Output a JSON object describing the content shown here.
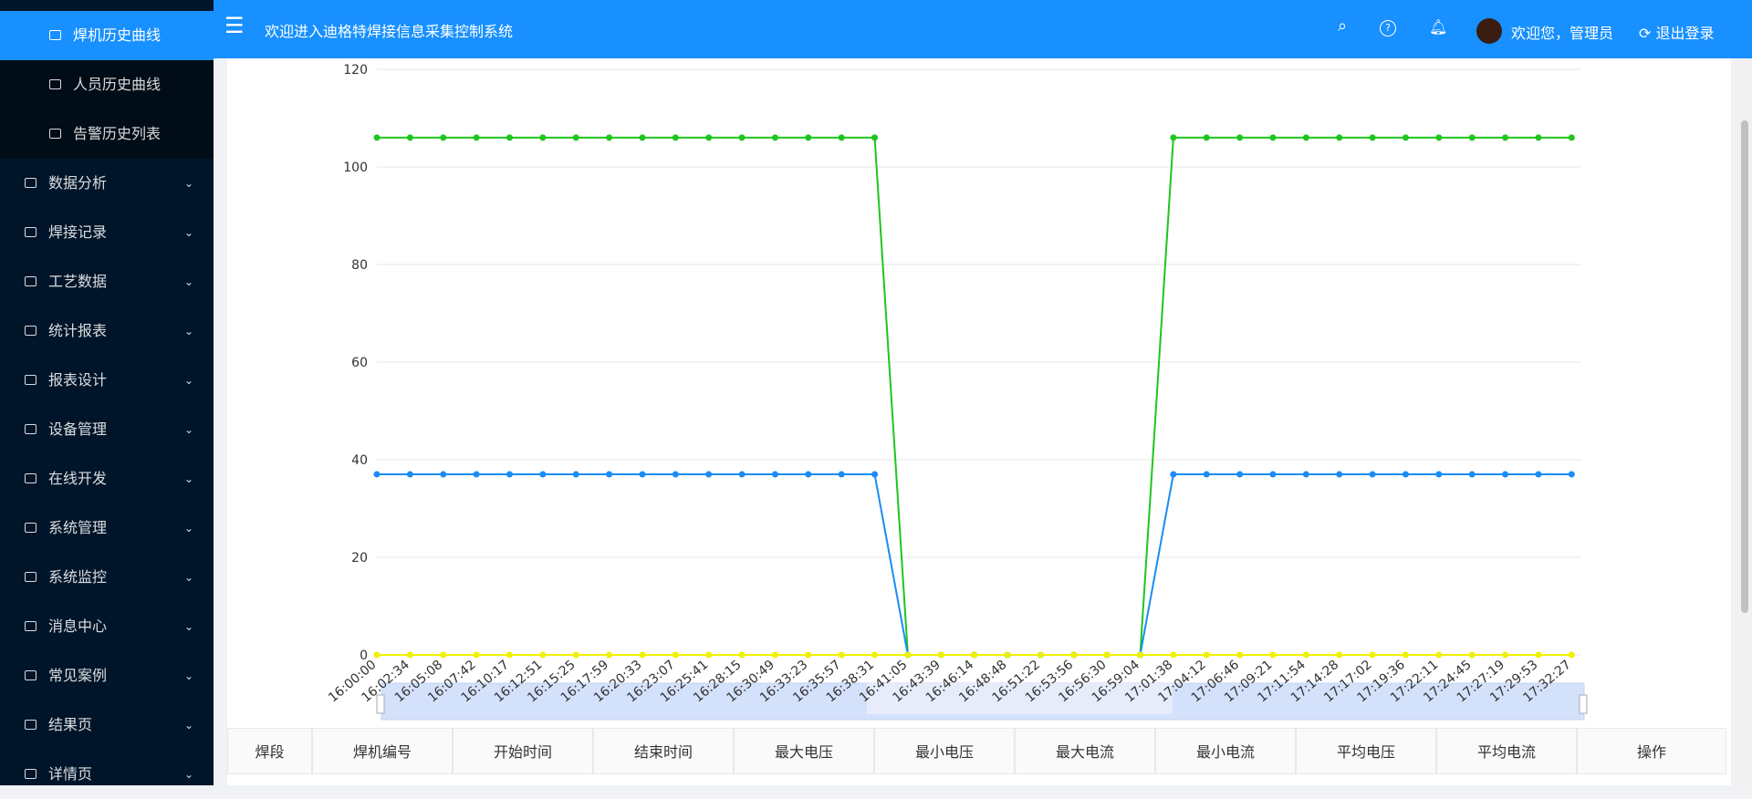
{
  "sidebar": {
    "items": [
      "焊机历史曲线",
      "人员历史曲线",
      "告警历史列表",
      "数据分析",
      "焊接记录",
      "工艺数据",
      "统计报表",
      "报表设计",
      "设备管理",
      "在线开发",
      "系统管理",
      "系统监控",
      "消息中心",
      "常见案例",
      "结果页",
      "详情页"
    ]
  },
  "header": {
    "title": "欢迎进入迪格特焊接信息采集控制系统",
    "user": "欢迎您，管理员",
    "logout": "退出登录"
  },
  "chart_data": {
    "type": "line",
    "categories": [
      "16:00:00",
      "16:02:34",
      "16:05:08",
      "16:07:42",
      "16:10:17",
      "16:12:51",
      "16:15:25",
      "16:17:59",
      "16:20:33",
      "16:23:07",
      "16:25:41",
      "16:28:15",
      "16:30:49",
      "16:33:23",
      "16:35:57",
      "16:38:31",
      "16:41:05",
      "16:43:39",
      "16:46:14",
      "16:48:48",
      "16:51:22",
      "16:53:56",
      "16:56:30",
      "16:59:04",
      "17:01:38",
      "17:04:12",
      "17:06:46",
      "17:09:21",
      "17:11:54",
      "17:14:28",
      "17:17:02",
      "17:19:36",
      "17:22:11",
      "17:24:45",
      "17:27:19",
      "17:29:53",
      "17:32:27"
    ],
    "series": [
      {
        "color": "#1ec51e",
        "values": [
          106,
          106,
          106,
          106,
          106,
          106,
          106,
          106,
          106,
          106,
          106,
          106,
          106,
          106,
          106,
          106,
          0,
          0,
          0,
          0,
          0,
          0,
          0,
          0,
          106,
          106,
          106,
          106,
          106,
          106,
          106,
          106,
          106,
          106,
          106,
          106,
          106
        ]
      },
      {
        "color": "#1b8cf5",
        "values": [
          37,
          37,
          37,
          37,
          37,
          37,
          37,
          37,
          37,
          37,
          37,
          37,
          37,
          37,
          37,
          37,
          0,
          0,
          0,
          0,
          0,
          0,
          0,
          0,
          37,
          37,
          37,
          37,
          37,
          37,
          37,
          37,
          37,
          37,
          37,
          37,
          37
        ]
      },
      {
        "color": "#f0f000",
        "values": [
          0,
          0,
          0,
          0,
          0,
          0,
          0,
          0,
          0,
          0,
          0,
          0,
          0,
          0,
          0,
          0,
          0,
          0,
          0,
          0,
          0,
          0,
          0,
          0,
          0,
          0,
          0,
          0,
          0,
          0,
          0,
          0,
          0,
          0,
          0,
          0,
          0
        ]
      }
    ],
    "ylim": [
      0,
      120
    ],
    "yticks": [
      0,
      20,
      40,
      60,
      80,
      100,
      120
    ],
    "grid": true
  },
  "table": {
    "headers": [
      "焊段",
      "焊机编号",
      "开始时间",
      "结束时间",
      "最大电压",
      "最小电压",
      "最大电流",
      "最小电流",
      "平均电压",
      "平均电流",
      "操作"
    ]
  }
}
